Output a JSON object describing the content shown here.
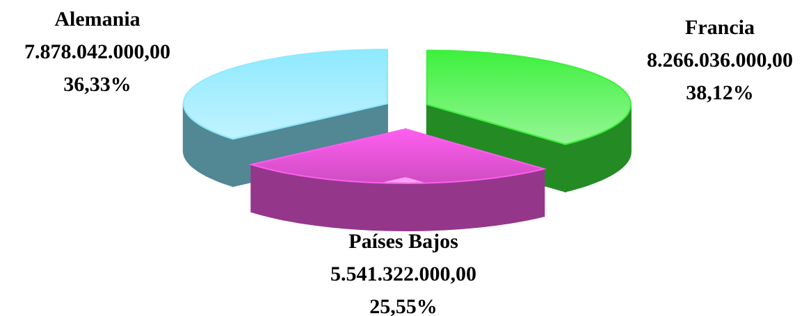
{
  "chart_data": {
    "type": "pie3d",
    "categories": [
      "Francia",
      "Países Bajos",
      "Alemania"
    ],
    "values": [
      8266036000,
      5541322000,
      7878042000
    ],
    "value_labels": [
      "8.266.036.000,00",
      "5.541.322.000,00",
      "7.878.042.000,00"
    ],
    "percents": [
      38.12,
      25.55,
      36.33
    ],
    "percent_labels": [
      "38,12%",
      "25,55%",
      "36,33%"
    ],
    "colors": [
      "#3ef03e",
      "#ff5ef0",
      "#8ee9ff"
    ]
  }
}
